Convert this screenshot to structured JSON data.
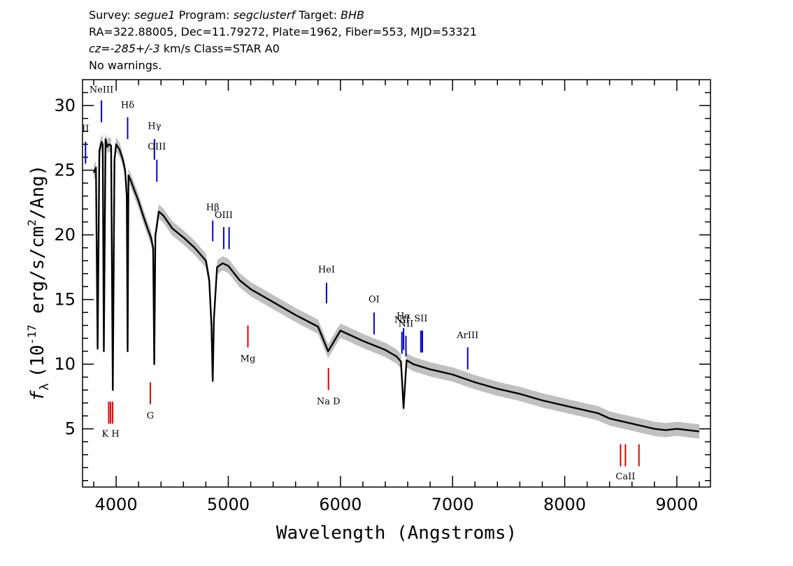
{
  "header": {
    "survey_label": "Survey:",
    "survey": "segue1",
    "program_label": "Program:",
    "program": "segclusterf",
    "target_label": "Target:",
    "target": "BHB",
    "line2": "RA=322.88005, Dec=11.79272, Plate=1962, Fiber=553, MJD=53321",
    "cz_label": "cz=",
    "cz_value": "-285+/-3",
    "cz_unit": " km/s Class=STAR A0",
    "line4": "No warnings."
  },
  "chart_data": {
    "type": "line",
    "xlabel": "Wavelength (Angstroms)",
    "ylabel": "f_λ (10^-17 erg/s/cm^2/Ang)",
    "ylabel_parts": {
      "f": "f",
      "sub": "λ",
      "pre": "(10",
      "exp1": "-17",
      "mid": " erg/s/cm",
      "exp2": "2",
      "post": "/Ang)"
    },
    "xlim": [
      3700,
      9300
    ],
    "ylim": [
      0.5,
      32
    ],
    "xticks": [
      4000,
      5000,
      6000,
      7000,
      8000,
      9000
    ],
    "yticks": [
      5,
      10,
      15,
      20,
      25,
      30
    ],
    "colors": {
      "flux": "#000000",
      "error_band": "#c0c0c0",
      "emission": "#0000cc",
      "absorption": "#dd0000"
    },
    "series": [
      {
        "x": [
          3800,
          3820,
          3835,
          3850,
          3870,
          3880,
          3890,
          3905,
          3920,
          3935,
          3955,
          3970,
          3985,
          4000,
          4030,
          4060,
          4080,
          4095,
          4102,
          4110,
          4130,
          4160,
          4200,
          4240,
          4280,
          4310,
          4330,
          4340,
          4350,
          4360,
          4380,
          4420,
          4500,
          4600,
          4700,
          4800,
          4830,
          4850,
          4861,
          4872,
          4900,
          4950,
          5000,
          5100,
          5200,
          5400,
          5600,
          5800,
          5890,
          6000,
          6200,
          6400,
          6500,
          6540,
          6563,
          6590,
          6650,
          6800,
          7000,
          7200,
          7400,
          7600,
          7800,
          8000,
          8200,
          8300,
          8400,
          8500,
          8600,
          8700,
          8800,
          8900,
          9000,
          9100,
          9200
        ],
        "y": [
          24.8,
          25.2,
          11.2,
          26.5,
          27.2,
          27.0,
          11.0,
          27.4,
          26.8,
          27.0,
          26.9,
          8.0,
          25.8,
          27.0,
          26.6,
          25.8,
          25.0,
          23.0,
          11.0,
          24.6,
          24.2,
          23.5,
          22.6,
          21.5,
          20.5,
          19.8,
          19.0,
          10.0,
          20.0,
          20.5,
          21.8,
          21.5,
          20.5,
          19.8,
          19.0,
          18.0,
          16.5,
          13.0,
          8.7,
          13.5,
          17.5,
          17.8,
          17.6,
          16.5,
          15.8,
          14.8,
          13.8,
          12.9,
          11.0,
          12.6,
          11.8,
          11.1,
          10.6,
          10.2,
          6.6,
          10.3,
          10.0,
          9.6,
          9.2,
          8.6,
          8.1,
          7.7,
          7.2,
          6.8,
          6.4,
          6.2,
          5.8,
          5.6,
          5.4,
          5.2,
          5.0,
          4.9,
          5.0,
          4.9,
          4.8
        ]
      }
    ],
    "lines": [
      {
        "label": "II",
        "wave": 3727,
        "kind": "emission",
        "y_bottom": 25.5,
        "y_top": 27.2,
        "label_y": 28.0
      },
      {
        "label": "NeIII",
        "wave": 3869,
        "kind": "emission",
        "y_bottom": 28.7,
        "y_top": 30.4,
        "label_y": 31.0
      },
      {
        "label": "Hδ",
        "wave": 4102,
        "kind": "emission",
        "y_bottom": 27.4,
        "y_top": 29.1,
        "label_y": 29.8
      },
      {
        "label": "Hγ",
        "wave": 4341,
        "kind": "emission",
        "y_bottom": 25.8,
        "y_top": 27.4,
        "label_y": 28.2
      },
      {
        "label": "OIII",
        "wave": 4363,
        "kind": "emission",
        "y_bottom": 24.1,
        "y_top": 25.8,
        "label_y": 26.6
      },
      {
        "label": "Hβ",
        "wave": 4861,
        "kind": "emission",
        "y_bottom": 19.5,
        "y_top": 21.1,
        "label_y": 21.9
      },
      {
        "label": "OIII",
        "wave": 4959,
        "kind": "emission",
        "y_bottom": 18.9,
        "y_top": 20.6,
        "label_y": 21.3
      },
      {
        "label": "",
        "wave": 5007,
        "kind": "emission",
        "y_bottom": 18.9,
        "y_top": 20.6,
        "label_y": 0
      },
      {
        "label": "HeI",
        "wave": 5876,
        "kind": "emission",
        "y_bottom": 14.7,
        "y_top": 16.3,
        "label_y": 17.1
      },
      {
        "label": "OI",
        "wave": 6300,
        "kind": "emission",
        "y_bottom": 12.3,
        "y_top": 14.0,
        "label_y": 14.8
      },
      {
        "label": "NII",
        "wave": 6548,
        "kind": "emission",
        "y_bottom": 10.8,
        "y_top": 12.5,
        "label_y": 13.2
      },
      {
        "label": "Hα",
        "wave": 6563,
        "kind": "emission",
        "y_bottom": 11.1,
        "y_top": 12.8,
        "label_y": 13.5
      },
      {
        "label": "NII",
        "wave": 6584,
        "kind": "emission",
        "y_bottom": 10.6,
        "y_top": 12.2,
        "label_y": 12.9
      },
      {
        "label": "SII",
        "wave": 6717,
        "kind": "emission",
        "y_bottom": 10.9,
        "y_top": 12.6,
        "label_y": 13.3
      },
      {
        "label": "",
        "wave": 6731,
        "kind": "emission",
        "y_bottom": 10.9,
        "y_top": 12.6,
        "label_y": 0
      },
      {
        "label": "ArIII",
        "wave": 7135,
        "kind": "emission",
        "y_bottom": 9.6,
        "y_top": 11.3,
        "label_y": 12.0
      },
      {
        "label": "",
        "wave": 3934,
        "kind": "absorption",
        "y_bottom": 5.4,
        "y_top": 7.1,
        "label_y": 0
      },
      {
        "label": "K H",
        "wave": 3950,
        "kind": "absorption",
        "y_bottom": 5.4,
        "y_top": 7.1,
        "label_y": 4.4
      },
      {
        "label": "",
        "wave": 3969,
        "kind": "absorption",
        "y_bottom": 5.4,
        "y_top": 7.1,
        "label_y": 0
      },
      {
        "label": "G",
        "wave": 4305,
        "kind": "absorption",
        "y_bottom": 6.9,
        "y_top": 8.6,
        "label_y": 5.8
      },
      {
        "label": "Mg",
        "wave": 5175,
        "kind": "absorption",
        "y_bottom": 11.3,
        "y_top": 13.0,
        "label_y": 10.2
      },
      {
        "label": "Na D",
        "wave": 5893,
        "kind": "absorption",
        "y_bottom": 8.0,
        "y_top": 9.7,
        "label_y": 6.9
      },
      {
        "label": "",
        "wave": 8498,
        "kind": "absorption",
        "y_bottom": 2.1,
        "y_top": 3.8,
        "label_y": 0
      },
      {
        "label": "CaII",
        "wave": 8542,
        "kind": "absorption",
        "y_bottom": 2.1,
        "y_top": 3.8,
        "label_y": 1.1
      },
      {
        "label": "",
        "wave": 8662,
        "kind": "absorption",
        "y_bottom": 2.1,
        "y_top": 3.8,
        "label_y": 0
      }
    ]
  }
}
